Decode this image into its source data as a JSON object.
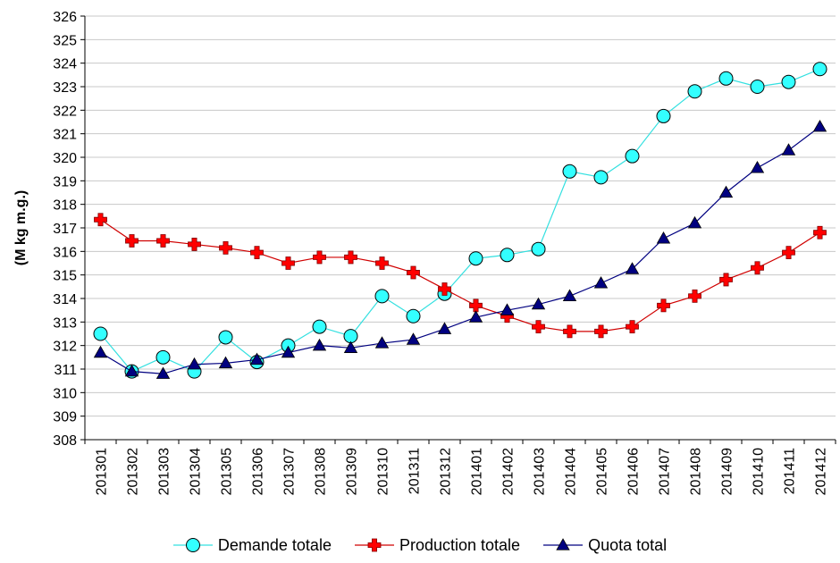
{
  "chart_data": {
    "type": "line",
    "ylabel": "(M kg m.g.)",
    "ylim": [
      308,
      326
    ],
    "yticks": [
      "308",
      "309",
      "310",
      "311",
      "312",
      "313",
      "314",
      "315",
      "316",
      "317",
      "318",
      "319",
      "320",
      "321",
      "322",
      "323",
      "324",
      "325",
      "326"
    ],
    "x": [
      "201301",
      "201302",
      "201303",
      "201304",
      "201305",
      "201306",
      "201307",
      "201308",
      "201309",
      "201310",
      "201311",
      "201312",
      "201401",
      "201402",
      "201403",
      "201404",
      "201405",
      "201406",
      "201407",
      "201408",
      "201409",
      "201410",
      "201411",
      "201412"
    ],
    "grid": true,
    "legend_position": "bottom",
    "series": [
      {
        "name": "Demande totale",
        "marker": "circle",
        "line_color": "#33e0e0",
        "marker_fill": "#33ffff",
        "values": [
          312.5,
          310.9,
          311.5,
          310.9,
          312.35,
          311.3,
          312.0,
          312.8,
          312.4,
          314.1,
          313.25,
          314.2,
          315.7,
          315.85,
          316.1,
          319.4,
          319.15,
          320.05,
          321.75,
          322.8,
          323.35,
          323.0,
          323.2,
          323.75
        ]
      },
      {
        "name": "Production totale",
        "marker": "cross",
        "line_color": "#d00000",
        "marker_fill": "#ff0000",
        "values": [
          317.35,
          316.45,
          316.45,
          316.3,
          316.15,
          315.95,
          315.5,
          315.75,
          315.75,
          315.5,
          315.1,
          314.4,
          313.7,
          313.25,
          312.8,
          312.6,
          312.6,
          312.8,
          313.7,
          314.1,
          314.8,
          315.3,
          315.95,
          316.8
        ]
      },
      {
        "name": "Quota total",
        "marker": "triangle",
        "line_color": "#000080",
        "marker_fill": "#000080",
        "values": [
          311.7,
          310.9,
          310.8,
          311.2,
          311.25,
          311.4,
          311.7,
          312.0,
          311.9,
          312.1,
          312.25,
          312.7,
          313.2,
          313.5,
          313.75,
          314.1,
          314.65,
          315.25,
          316.55,
          317.2,
          318.5,
          319.55,
          320.3,
          321.3
        ]
      }
    ]
  }
}
